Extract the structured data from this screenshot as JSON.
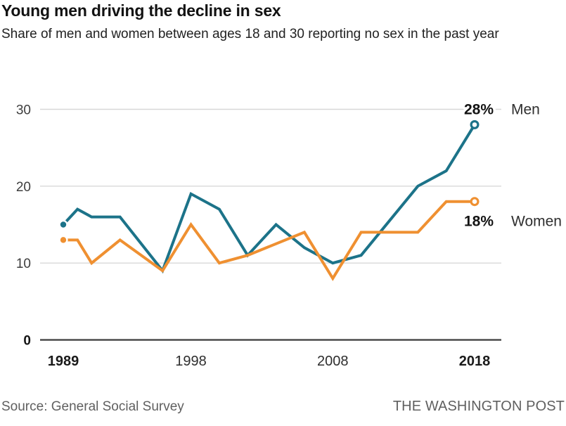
{
  "header": {
    "title": "Young men driving the decline in sex",
    "subtitle": "Share of men and women between ages 18 and 30 reporting no sex in the past year"
  },
  "chart_data": {
    "type": "line",
    "title": "Young men driving the decline in sex",
    "subtitle": "Share of men and women between ages 18 and 30 reporting no sex in the past year",
    "grid": true,
    "legend_position": "end-of-line labels at right",
    "x_axis": {
      "range": [
        1989,
        2018
      ],
      "ticks": [
        {
          "year": 1989,
          "label": "1989",
          "bold": true
        },
        {
          "year": 1998,
          "label": "1998",
          "bold": false
        },
        {
          "year": 2008,
          "label": "2008",
          "bold": false
        },
        {
          "year": 2018,
          "label": "2018",
          "bold": true
        }
      ]
    },
    "y_axis": {
      "range": [
        0,
        30
      ],
      "unit": "percent",
      "ticks": [
        {
          "value": 0,
          "label": "0",
          "bold": true
        },
        {
          "value": 10,
          "label": "10",
          "bold": false
        },
        {
          "value": 20,
          "label": "20",
          "bold": false
        },
        {
          "value": 30,
          "label": "30",
          "bold": false
        }
      ],
      "gridlines": [
        10,
        20,
        30
      ]
    },
    "series": [
      {
        "name": "Men",
        "color": "#1c7389",
        "end_label": "28%",
        "end_value": 28,
        "points": [
          [
            1989,
            15
          ],
          [
            1990,
            17
          ],
          [
            1991,
            16
          ],
          [
            1993,
            16
          ],
          [
            1996,
            9
          ],
          [
            1998,
            19
          ],
          [
            2000,
            17
          ],
          [
            2002,
            11
          ],
          [
            2004,
            15
          ],
          [
            2006,
            12
          ],
          [
            2008,
            10
          ],
          [
            2010,
            11
          ],
          [
            2014,
            20
          ],
          [
            2016,
            22
          ],
          [
            2018,
            28
          ]
        ]
      },
      {
        "name": "Women",
        "color": "#ef9031",
        "end_label": "18%",
        "end_value": 18,
        "points": [
          [
            1989,
            13
          ],
          [
            1990,
            13
          ],
          [
            1991,
            10
          ],
          [
            1993,
            13
          ],
          [
            1996,
            9
          ],
          [
            1998,
            15
          ],
          [
            2000,
            10
          ],
          [
            2002,
            11
          ],
          [
            2006,
            14
          ],
          [
            2008,
            8
          ],
          [
            2010,
            14
          ],
          [
            2014,
            14
          ],
          [
            2016,
            18
          ],
          [
            2018,
            18
          ]
        ]
      }
    ]
  },
  "footer": {
    "source": "Source: General Social Survey",
    "brand": "THE WASHINGTON POST"
  },
  "colors": {
    "men": "#1c7389",
    "women": "#ef9031",
    "grid": "#d8d8d8",
    "axis": "#4c4c4c",
    "title": "#121212",
    "subtitle": "#222222",
    "footer_text": "#606060",
    "background": "#ffffff"
  }
}
